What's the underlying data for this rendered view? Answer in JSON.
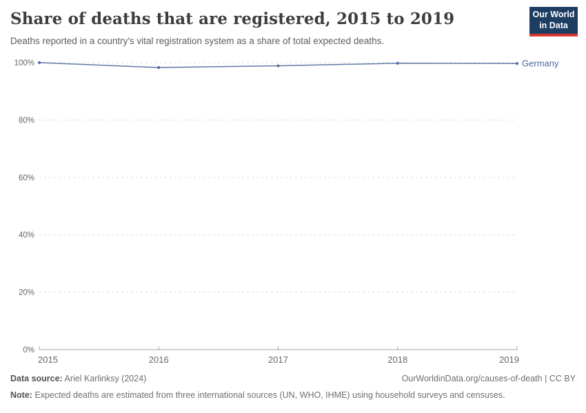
{
  "header": {
    "title": "Share of deaths that are registered, 2015 to 2019",
    "subtitle": "Deaths reported in a country's vital registration system as a share of total expected deaths.",
    "logo_line1": "Our World",
    "logo_line2": "in Data"
  },
  "chart_data": {
    "type": "line",
    "title": "Share of deaths that are registered, 2015 to 2019",
    "x": [
      2015,
      2016,
      2017,
      2018,
      2019
    ],
    "series": [
      {
        "name": "Germany",
        "values": [
          100,
          98.3,
          98.9,
          99.8,
          99.7
        ],
        "color": "#4C6A9C"
      }
    ],
    "xlabel": "",
    "ylabel": "",
    "ylim": [
      0,
      100
    ],
    "yticks": [
      0,
      20,
      40,
      60,
      80,
      100
    ],
    "ytick_format": "{}%",
    "xticks": [
      2015,
      2016,
      2017,
      2018,
      2019
    ],
    "grid": "horizontal-dashed",
    "legend_position": "end-of-line-label",
    "marker": "point-per-year"
  },
  "colors": {
    "series_blue": "#4C6A9C",
    "gridline": "#dcdcdc",
    "axis": "#a5a5a5",
    "logo_navy": "#1d3d63",
    "logo_red": "#d7382e",
    "title_text": "#3d3d3d",
    "muted_text": "#6e6e6e"
  },
  "footer": {
    "data_source_label": "Data source:",
    "data_source_value": " Ariel Karlinksy (2024)",
    "attribution": "OurWorldinData.org/causes-of-death | CC BY",
    "note_label": "Note:",
    "note_value": " Expected deaths are estimated from three international sources (UN, WHO, IHME) using household surveys and censuses."
  }
}
